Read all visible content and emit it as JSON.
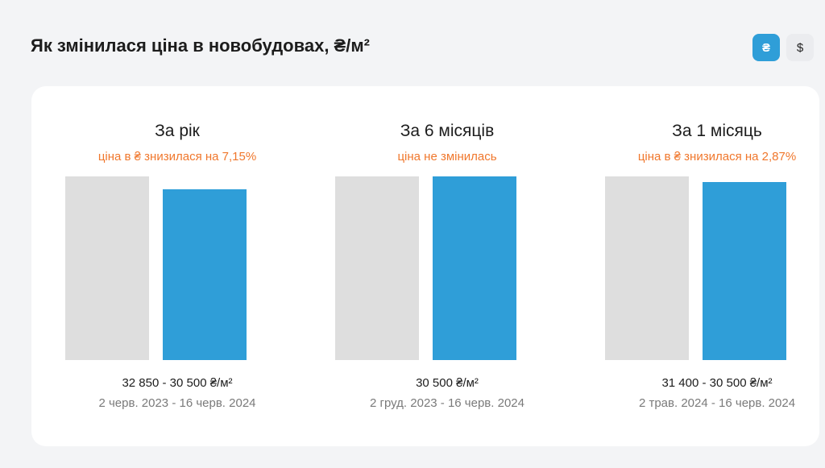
{
  "header": {
    "title": "Як змінилася ціна в новобудовах, ₴/м²"
  },
  "currency_toggle": {
    "options": [
      {
        "label": "₴",
        "active": true
      },
      {
        "label": "$",
        "active": false
      }
    ]
  },
  "colors": {
    "accent": "#2f9ed8",
    "previous_bar": "#dedede",
    "change_text": "#f0772c"
  },
  "chart_data": [
    {
      "type": "bar",
      "title": "За рік",
      "subtitle": "ціна в ₴ знизилася на 7,15%",
      "values": [
        32850,
        30500
      ],
      "price_label": "32 850 - 30 500 ₴/м²",
      "date_label": "2 черв. 2023 - 16 черв. 2024"
    },
    {
      "type": "bar",
      "title": "За 6 місяців",
      "subtitle": "ціна не змінилась",
      "values": [
        30500,
        30500
      ],
      "price_label": "30 500 ₴/м²",
      "date_label": "2 груд. 2023 - 16 черв. 2024"
    },
    {
      "type": "bar",
      "title": "За 1 місяць",
      "subtitle": "ціна в ₴ знизилася на 2,87%",
      "values": [
        31400,
        30500
      ],
      "price_label": "31 400 - 30 500 ₴/м²",
      "date_label": "2 трав. 2024 - 16 черв. 2024"
    }
  ]
}
